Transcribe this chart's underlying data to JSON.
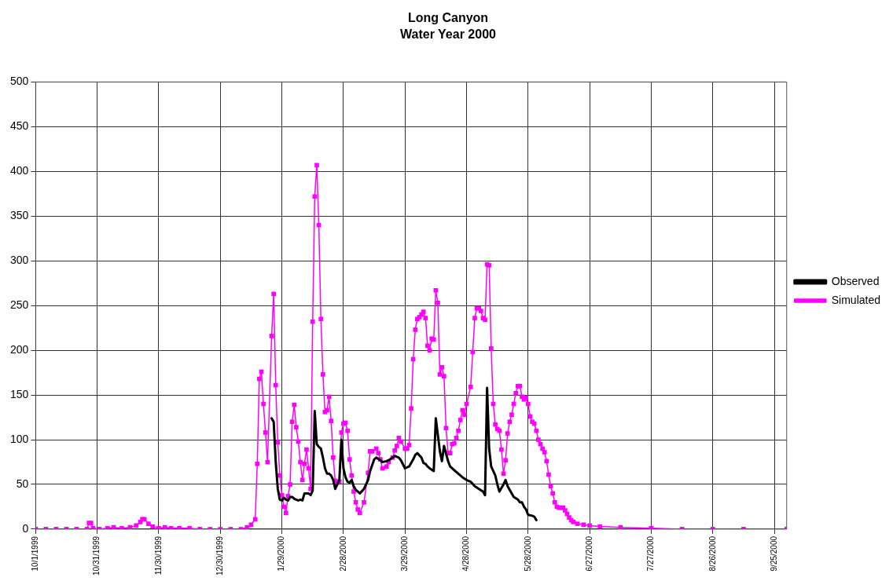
{
  "chart_data": {
    "type": "line",
    "title": "Long Canyon",
    "subtitle": "Water Year 2000",
    "legend": "right",
    "grid": true,
    "xlim": [
      "1999-10-01",
      "2000-10-01"
    ],
    "xticks": [
      {
        "value": "1999-10-01",
        "label": "10/1/1999"
      },
      {
        "value": "1999-10-31",
        "label": "10/31/1999"
      },
      {
        "value": "1999-11-30",
        "label": "11/30/1999"
      },
      {
        "value": "1999-12-30",
        "label": "12/30/1999"
      },
      {
        "value": "2000-01-29",
        "label": "1/29/2000"
      },
      {
        "value": "2000-02-28",
        "label": "2/28/2000"
      },
      {
        "value": "2000-03-29",
        "label": "3/29/2000"
      },
      {
        "value": "2000-04-28",
        "label": "4/28/2000"
      },
      {
        "value": "2000-05-28",
        "label": "5/28/2000"
      },
      {
        "value": "2000-06-27",
        "label": "6/27/2000"
      },
      {
        "value": "2000-07-27",
        "label": "7/27/2000"
      },
      {
        "value": "2000-08-26",
        "label": "8/26/2000"
      },
      {
        "value": "2000-09-25",
        "label": "9/25/2000"
      }
    ],
    "ylim": [
      0,
      500
    ],
    "yticks": [
      0,
      50,
      100,
      150,
      200,
      250,
      300,
      350,
      400,
      450,
      500
    ],
    "series": [
      {
        "name": "Observed",
        "color": "#000000",
        "marker": "none",
        "x": [
          "2000-01-24",
          "2000-01-25",
          "2000-01-26",
          "2000-01-27",
          "2000-01-28",
          "2000-01-29",
          "2000-01-30",
          "2000-01-31",
          "2000-02-01",
          "2000-02-02",
          "2000-02-03",
          "2000-02-04",
          "2000-02-05",
          "2000-02-06",
          "2000-02-07",
          "2000-02-08",
          "2000-02-09",
          "2000-02-11",
          "2000-02-12",
          "2000-02-13",
          "2000-02-14",
          "2000-02-15",
          "2000-02-16",
          "2000-02-17",
          "2000-02-18",
          "2000-02-19",
          "2000-02-20",
          "2000-02-21",
          "2000-02-22",
          "2000-02-23",
          "2000-02-24",
          "2000-02-25",
          "2000-02-26",
          "2000-02-27",
          "2000-02-28",
          "2000-02-29",
          "2000-03-01",
          "2000-03-02",
          "2000-03-03",
          "2000-03-04",
          "2000-03-05",
          "2000-03-06",
          "2000-03-07",
          "2000-03-09",
          "2000-03-11",
          "2000-03-12",
          "2000-03-14",
          "2000-03-15",
          "2000-03-17",
          "2000-03-18",
          "2000-03-20",
          "2000-03-21",
          "2000-03-23",
          "2000-03-24",
          "2000-03-26",
          "2000-03-27",
          "2000-03-29",
          "2000-03-31",
          "2000-04-02",
          "2000-04-03",
          "2000-04-04",
          "2000-04-06",
          "2000-04-07",
          "2000-04-08",
          "2000-04-09",
          "2000-04-10",
          "2000-04-12",
          "2000-04-13",
          "2000-04-15",
          "2000-04-16",
          "2000-04-17",
          "2000-04-19",
          "2000-04-20",
          "2000-04-22",
          "2000-04-24",
          "2000-04-26",
          "2000-04-28",
          "2000-04-30",
          "2000-05-02",
          "2000-05-04",
          "2000-05-06",
          "2000-05-07",
          "2000-05-08",
          "2000-05-09",
          "2000-05-10",
          "2000-05-12",
          "2000-05-13",
          "2000-05-14",
          "2000-05-16",
          "2000-05-17",
          "2000-05-18",
          "2000-05-20",
          "2000-05-21",
          "2000-05-23",
          "2000-05-24",
          "2000-05-25",
          "2000-05-26",
          "2000-05-27",
          "2000-05-28",
          "2000-05-30",
          "2000-05-31",
          "2000-06-01"
        ],
        "values": [
          124,
          120,
          75,
          45,
          33,
          32,
          35,
          33,
          32,
          36,
          36,
          34,
          33,
          32,
          33,
          32,
          40,
          40,
          38,
          43,
          132,
          95,
          92,
          90,
          80,
          68,
          62,
          62,
          60,
          55,
          45,
          50,
          55,
          100,
          68,
          58,
          53,
          52,
          55,
          48,
          44,
          42,
          40,
          45,
          55,
          65,
          78,
          80,
          77,
          75,
          76,
          77,
          80,
          82,
          80,
          77,
          68,
          70,
          78,
          83,
          85,
          80,
          74,
          73,
          70,
          68,
          65,
          124,
          87,
          76,
          93,
          76,
          70,
          66,
          62,
          58,
          55,
          53,
          48,
          45,
          42,
          38,
          158,
          90,
          70,
          60,
          50,
          42,
          50,
          55,
          48,
          40,
          36,
          33,
          30,
          30,
          25,
          22,
          16,
          15,
          14,
          10
        ]
      },
      {
        "name": "Simulated",
        "color": "#ff00ff",
        "marker": "square",
        "x": [
          "1999-10-01",
          "1999-10-06",
          "1999-10-11",
          "1999-10-16",
          "1999-10-21",
          "1999-10-26",
          "1999-10-27",
          "1999-10-28",
          "1999-10-29",
          "1999-11-01",
          "1999-11-05",
          "1999-11-08",
          "1999-11-12",
          "1999-11-16",
          "1999-11-19",
          "1999-11-21",
          "1999-11-22",
          "1999-11-23",
          "1999-11-25",
          "1999-11-27",
          "1999-11-30",
          "1999-12-03",
          "1999-12-06",
          "1999-12-10",
          "1999-12-15",
          "1999-12-20",
          "1999-12-25",
          "1999-12-30",
          "2000-01-04",
          "2000-01-09",
          "2000-01-12",
          "2000-01-14",
          "2000-01-16",
          "2000-01-17",
          "2000-01-18",
          "2000-01-19",
          "2000-01-20",
          "2000-01-21",
          "2000-01-22",
          "2000-01-24",
          "2000-01-25",
          "2000-01-26",
          "2000-01-27",
          "2000-01-28",
          "2000-01-29",
          "2000-01-30",
          "2000-01-31",
          "2000-02-01",
          "2000-02-02",
          "2000-02-03",
          "2000-02-04",
          "2000-02-05",
          "2000-02-06",
          "2000-02-07",
          "2000-02-08",
          "2000-02-09",
          "2000-02-10",
          "2000-02-11",
          "2000-02-12",
          "2000-02-13",
          "2000-02-14",
          "2000-02-15",
          "2000-02-16",
          "2000-02-17",
          "2000-02-18",
          "2000-02-19",
          "2000-02-20",
          "2000-02-21",
          "2000-02-22",
          "2000-02-23",
          "2000-02-24",
          "2000-02-25",
          "2000-02-26",
          "2000-02-27",
          "2000-02-28",
          "2000-02-29",
          "2000-03-01",
          "2000-03-02",
          "2000-03-03",
          "2000-03-04",
          "2000-03-05",
          "2000-03-06",
          "2000-03-07",
          "2000-03-09",
          "2000-03-11",
          "2000-03-12",
          "2000-03-13",
          "2000-03-15",
          "2000-03-16",
          "2000-03-17",
          "2000-03-18",
          "2000-03-20",
          "2000-03-21",
          "2000-03-23",
          "2000-03-24",
          "2000-03-25",
          "2000-03-26",
          "2000-03-27",
          "2000-03-29",
          "2000-03-30",
          "2000-03-31",
          "2000-04-01",
          "2000-04-02",
          "2000-04-03",
          "2000-04-04",
          "2000-04-05",
          "2000-04-06",
          "2000-04-07",
          "2000-04-08",
          "2000-04-09",
          "2000-04-10",
          "2000-04-11",
          "2000-04-12",
          "2000-04-13",
          "2000-04-14",
          "2000-04-15",
          "2000-04-16",
          "2000-04-17",
          "2000-04-18",
          "2000-04-19",
          "2000-04-20",
          "2000-04-21",
          "2000-04-22",
          "2000-04-23",
          "2000-04-24",
          "2000-04-25",
          "2000-04-26",
          "2000-04-27",
          "2000-04-28",
          "2000-04-30",
          "2000-05-01",
          "2000-05-02",
          "2000-05-03",
          "2000-05-04",
          "2000-05-05",
          "2000-05-06",
          "2000-05-07",
          "2000-05-08",
          "2000-05-09",
          "2000-05-10",
          "2000-05-11",
          "2000-05-12",
          "2000-05-13",
          "2000-05-14",
          "2000-05-15",
          "2000-05-16",
          "2000-05-17",
          "2000-05-18",
          "2000-05-19",
          "2000-05-20",
          "2000-05-21",
          "2000-05-22",
          "2000-05-23",
          "2000-05-24",
          "2000-05-25",
          "2000-05-26",
          "2000-05-27",
          "2000-05-28",
          "2000-05-29",
          "2000-05-30",
          "2000-05-31",
          "2000-06-01",
          "2000-06-02",
          "2000-06-03",
          "2000-06-04",
          "2000-06-05",
          "2000-06-06",
          "2000-06-07",
          "2000-06-08",
          "2000-06-09",
          "2000-06-10",
          "2000-06-11",
          "2000-06-12",
          "2000-06-13",
          "2000-06-14",
          "2000-06-15",
          "2000-06-16",
          "2000-06-17",
          "2000-06-18",
          "2000-06-19",
          "2000-06-21",
          "2000-06-24",
          "2000-06-27",
          "2000-07-02",
          "2000-07-12",
          "2000-07-27",
          "2000-08-11",
          "2000-08-26",
          "2000-09-10",
          "2000-10-01"
        ],
        "values": [
          0,
          0,
          0,
          0,
          0,
          0,
          7,
          7,
          1,
          0,
          1,
          2,
          1,
          2,
          4,
          8,
          11,
          11,
          6,
          3,
          1,
          2,
          1,
          1,
          1,
          0,
          0,
          0,
          0,
          0,
          2,
          5,
          11,
          73,
          168,
          176,
          140,
          108,
          75,
          216,
          263,
          161,
          97,
          60,
          38,
          25,
          18,
          37,
          50,
          120,
          139,
          114,
          98,
          75,
          55,
          73,
          89,
          68,
          45,
          232,
          372,
          407,
          340,
          235,
          173,
          131,
          133,
          148,
          121,
          80,
          54,
          52,
          53,
          108,
          118,
          119,
          110,
          78,
          60,
          42,
          30,
          22,
          18,
          30,
          63,
          87,
          87,
          90,
          85,
          78,
          68,
          70,
          75,
          80,
          88,
          93,
          102,
          98,
          90,
          90,
          94,
          135,
          190,
          223,
          235,
          237,
          240,
          243,
          236,
          205,
          200,
          213,
          212,
          267,
          253,
          173,
          181,
          171,
          113,
          85,
          85,
          95,
          96,
          102,
          110,
          122,
          133,
          128,
          140,
          159,
          198,
          236,
          247,
          247,
          244,
          236,
          234,
          296,
          295,
          202,
          140,
          117,
          112,
          110,
          89,
          62,
          77,
          107,
          120,
          128,
          140,
          152,
          160,
          160,
          148,
          145,
          147,
          140,
          126,
          120,
          118,
          110,
          100,
          95,
          90,
          86,
          76,
          61,
          48,
          40,
          30,
          25,
          24,
          24,
          24,
          21,
          17,
          13,
          10,
          8,
          6,
          5,
          4,
          3,
          2,
          1,
          0,
          0,
          0,
          0
        ]
      }
    ]
  }
}
